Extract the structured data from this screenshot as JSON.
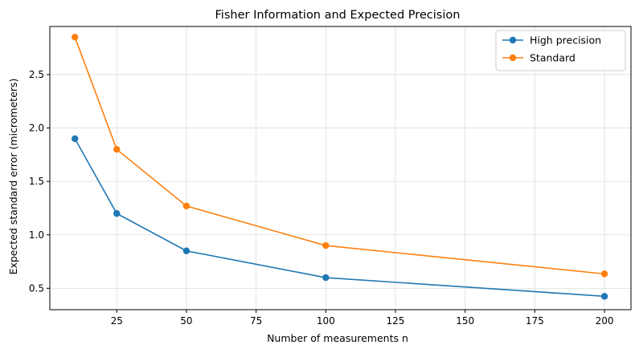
{
  "chart_data": {
    "type": "line",
    "title": "Fisher Information and Expected Precision",
    "xlabel": "Number of measurements n",
    "ylabel": "Expected standard error (micrometers)",
    "x": [
      10,
      25,
      50,
      100,
      200
    ],
    "xlim": [
      1,
      209.5
    ],
    "ylim": [
      0.3,
      2.95
    ],
    "xticks": [
      25,
      50,
      75,
      100,
      125,
      150,
      175,
      200
    ],
    "yticks": [
      0.5,
      1.0,
      1.5,
      2.0,
      2.5
    ],
    "xtick_labels": [
      "25",
      "50",
      "75",
      "100",
      "125",
      "150",
      "175",
      "200"
    ],
    "ytick_labels": [
      "0.5",
      "1.0",
      "1.5",
      "2.0",
      "2.5"
    ],
    "grid": true,
    "legend_position": "top-right",
    "series": [
      {
        "name": "High precision",
        "color": "#1f77b4",
        "values": [
          1.9,
          1.2,
          0.85,
          0.6,
          0.425
        ]
      },
      {
        "name": "Standard",
        "color": "#ff7f0e",
        "values": [
          2.85,
          1.8,
          1.27,
          0.9,
          0.635
        ]
      }
    ]
  }
}
